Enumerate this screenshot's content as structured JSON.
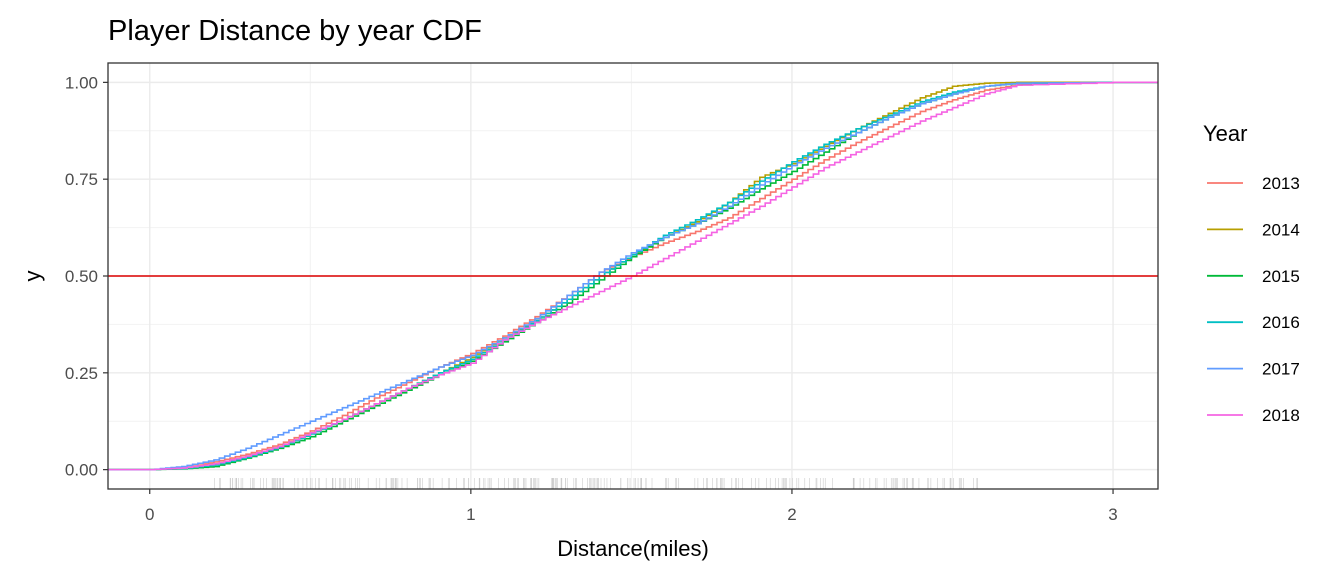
{
  "chart_data": {
    "type": "line",
    "step": true,
    "title": "Player Distance by year CDF",
    "xlabel": "Distance(miles)",
    "ylabel": "y",
    "xlim": [
      -0.13,
      3.14
    ],
    "ylim": [
      -0.05,
      1.05
    ],
    "x_ticks": [
      0,
      1,
      2,
      3
    ],
    "x_tick_labels": [
      "0",
      "1",
      "2",
      "3"
    ],
    "y_ticks": [
      0,
      0.25,
      0.5,
      0.75,
      1
    ],
    "y_tick_labels": [
      "0.00",
      "0.25",
      "0.50",
      "0.75",
      "1.00"
    ],
    "grid": true,
    "legend": {
      "title": "Year",
      "position": "right"
    },
    "reference_line": {
      "y": 0.5,
      "color": "#dd0000"
    },
    "rug": {
      "x_start": 0.2,
      "x_end": 2.6
    },
    "series": [
      {
        "name": "2013",
        "color": "#F8766D",
        "x": [
          0,
          0.1,
          0.2,
          0.3,
          0.4,
          0.5,
          0.6,
          0.7,
          0.8,
          0.9,
          1.0,
          1.1,
          1.2,
          1.3,
          1.4,
          1.5,
          1.6,
          1.7,
          1.8,
          1.9,
          2.0,
          2.1,
          2.2,
          2.3,
          2.4,
          2.5,
          2.6,
          2.7,
          2.8,
          3.0
        ],
        "y": [
          0,
          0.004,
          0.02,
          0.04,
          0.065,
          0.1,
          0.14,
          0.185,
          0.225,
          0.265,
          0.3,
          0.345,
          0.395,
          0.45,
          0.51,
          0.55,
          0.585,
          0.615,
          0.65,
          0.7,
          0.75,
          0.8,
          0.845,
          0.885,
          0.925,
          0.955,
          0.98,
          0.993,
          0.998,
          1
        ]
      },
      {
        "name": "2014",
        "color": "#B79F00",
        "x": [
          0,
          0.1,
          0.2,
          0.3,
          0.4,
          0.5,
          0.6,
          0.7,
          0.8,
          0.9,
          1.0,
          1.1,
          1.2,
          1.3,
          1.4,
          1.5,
          1.6,
          1.7,
          1.8,
          1.9,
          2.0,
          2.1,
          2.2,
          2.3,
          2.4,
          2.5,
          2.6,
          2.7,
          3.0
        ],
        "y": [
          0,
          0.003,
          0.015,
          0.035,
          0.06,
          0.095,
          0.13,
          0.17,
          0.21,
          0.25,
          0.29,
          0.34,
          0.385,
          0.44,
          0.5,
          0.555,
          0.6,
          0.64,
          0.69,
          0.755,
          0.79,
          0.835,
          0.88,
          0.92,
          0.96,
          0.99,
          0.998,
          1,
          1
        ]
      },
      {
        "name": "2015",
        "color": "#00BA38",
        "x": [
          0,
          0.1,
          0.2,
          0.3,
          0.4,
          0.5,
          0.6,
          0.7,
          0.8,
          0.9,
          1.0,
          1.1,
          1.2,
          1.3,
          1.4,
          1.5,
          1.6,
          1.7,
          1.8,
          1.9,
          2.0,
          2.1,
          2.2,
          2.3,
          2.4,
          2.5,
          2.6,
          2.7,
          3.0
        ],
        "y": [
          0,
          0.002,
          0.008,
          0.03,
          0.055,
          0.085,
          0.125,
          0.165,
          0.205,
          0.245,
          0.28,
          0.33,
          0.38,
          0.43,
          0.49,
          0.55,
          0.6,
          0.635,
          0.675,
          0.725,
          0.77,
          0.82,
          0.87,
          0.91,
          0.945,
          0.97,
          0.99,
          0.997,
          1
        ]
      },
      {
        "name": "2016",
        "color": "#00BFC4",
        "x": [
          0,
          0.1,
          0.2,
          0.3,
          0.4,
          0.5,
          0.6,
          0.7,
          0.8,
          0.9,
          1.0,
          1.1,
          1.2,
          1.3,
          1.4,
          1.5,
          1.6,
          1.7,
          1.8,
          1.9,
          2.0,
          2.1,
          2.2,
          2.3,
          2.4,
          2.5,
          2.6,
          2.7,
          3.0
        ],
        "y": [
          0,
          0.003,
          0.012,
          0.032,
          0.058,
          0.092,
          0.13,
          0.17,
          0.21,
          0.25,
          0.285,
          0.335,
          0.385,
          0.44,
          0.5,
          0.555,
          0.605,
          0.645,
          0.69,
          0.745,
          0.795,
          0.84,
          0.88,
          0.915,
          0.95,
          0.975,
          0.99,
          0.998,
          1
        ]
      },
      {
        "name": "2017",
        "color": "#619CFF",
        "x": [
          0,
          0.1,
          0.2,
          0.3,
          0.4,
          0.5,
          0.6,
          0.7,
          0.8,
          0.9,
          1.0,
          1.1,
          1.2,
          1.3,
          1.4,
          1.5,
          1.6,
          1.7,
          1.8,
          1.9,
          2.0,
          2.1,
          2.2,
          2.3,
          2.4,
          2.5,
          2.6,
          2.7,
          3.0
        ],
        "y": [
          0,
          0.008,
          0.025,
          0.055,
          0.09,
          0.125,
          0.16,
          0.195,
          0.23,
          0.265,
          0.295,
          0.34,
          0.39,
          0.45,
          0.51,
          0.56,
          0.6,
          0.635,
          0.68,
          0.735,
          0.785,
          0.83,
          0.87,
          0.91,
          0.945,
          0.97,
          0.99,
          0.998,
          1
        ]
      },
      {
        "name": "2018",
        "color": "#F564E3",
        "x": [
          0,
          0.1,
          0.2,
          0.3,
          0.4,
          0.5,
          0.6,
          0.7,
          0.8,
          0.9,
          1.0,
          1.1,
          1.2,
          1.3,
          1.4,
          1.5,
          1.6,
          1.7,
          1.8,
          1.9,
          2.0,
          2.1,
          2.2,
          2.3,
          2.4,
          2.5,
          2.6,
          2.7,
          3.0
        ],
        "y": [
          0,
          0.004,
          0.015,
          0.035,
          0.06,
          0.095,
          0.13,
          0.17,
          0.21,
          0.245,
          0.275,
          0.335,
          0.38,
          0.42,
          0.46,
          0.5,
          0.545,
          0.59,
          0.635,
          0.68,
          0.73,
          0.78,
          0.82,
          0.86,
          0.9,
          0.935,
          0.97,
          0.993,
          1
        ]
      }
    ]
  }
}
